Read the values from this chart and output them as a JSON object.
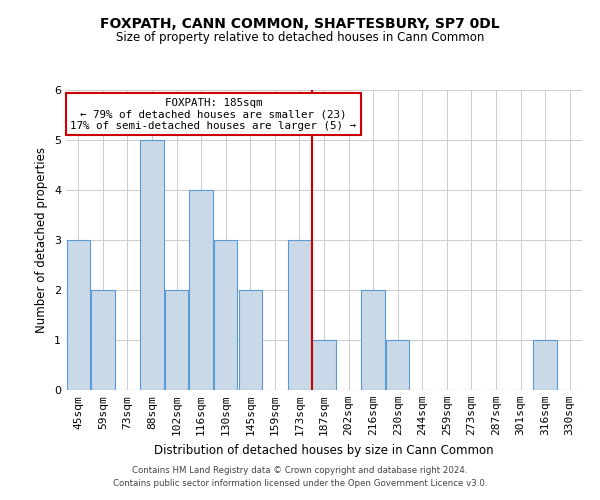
{
  "title": "FOXPATH, CANN COMMON, SHAFTESBURY, SP7 0DL",
  "subtitle": "Size of property relative to detached houses in Cann Common",
  "xlabel": "Distribution of detached houses by size in Cann Common",
  "ylabel": "Number of detached properties",
  "bin_labels": [
    "45sqm",
    "59sqm",
    "73sqm",
    "88sqm",
    "102sqm",
    "116sqm",
    "130sqm",
    "145sqm",
    "159sqm",
    "173sqm",
    "187sqm",
    "202sqm",
    "216sqm",
    "230sqm",
    "244sqm",
    "259sqm",
    "273sqm",
    "287sqm",
    "301sqm",
    "316sqm",
    "330sqm"
  ],
  "bar_heights": [
    3,
    2,
    0,
    5,
    2,
    4,
    3,
    2,
    0,
    3,
    1,
    0,
    2,
    1,
    0,
    0,
    0,
    0,
    0,
    1,
    0
  ],
  "bar_color": "#c9d9e8",
  "bar_edge_color": "#5b9bd5",
  "vline_x_index": 10,
  "vline_color": "#cc0000",
  "annotation_title": "FOXPATH: 185sqm",
  "annotation_line1": "← 79% of detached houses are smaller (23)",
  "annotation_line2": "17% of semi-detached houses are larger (5) →",
  "annotation_box_color": "#ffffff",
  "annotation_box_edge": "#cc0000",
  "ylim": [
    0,
    6
  ],
  "yticks": [
    0,
    1,
    2,
    3,
    4,
    5,
    6
  ],
  "footer_line1": "Contains HM Land Registry data © Crown copyright and database right 2024.",
  "footer_line2": "Contains public sector information licensed under the Open Government Licence v3.0."
}
